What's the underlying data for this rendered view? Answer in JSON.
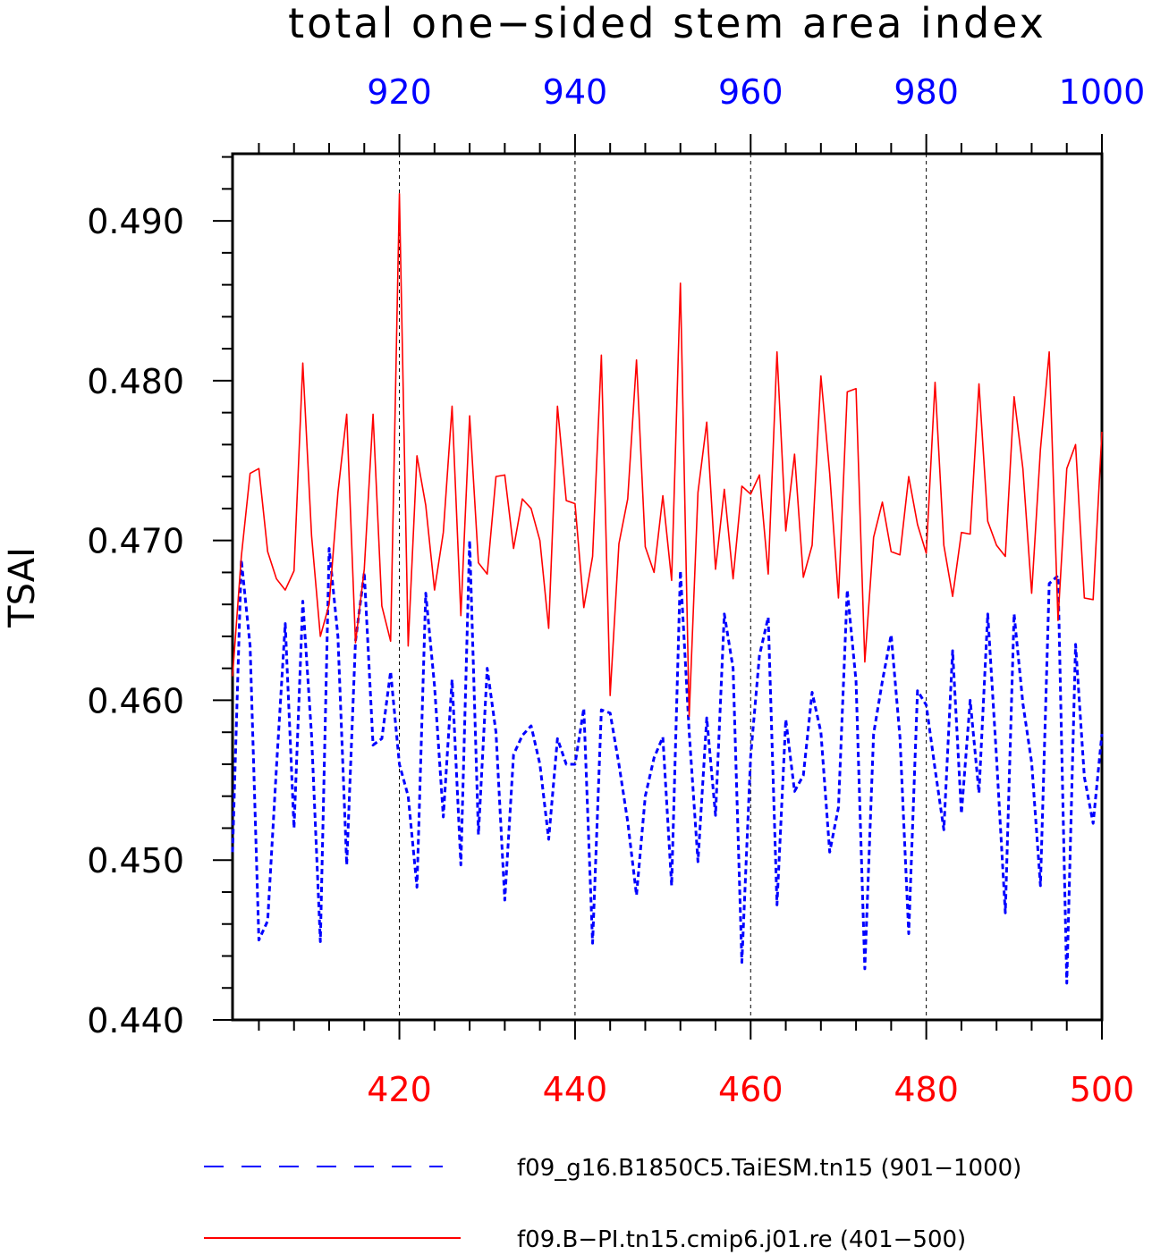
{
  "chart_data": {
    "type": "line",
    "title": "total one−sided stem area index",
    "ylabel": "TSAI",
    "xlabel": "",
    "ylim": [
      0.44,
      0.4942
    ],
    "yticks": [
      "0.440",
      "0.450",
      "0.460",
      "0.470",
      "0.480",
      "0.490"
    ],
    "grid": "vertical dashed lines at major x ticks",
    "legend_position": "bottom",
    "x_bottom": {
      "range": [
        401,
        500
      ],
      "ticks": [
        "420",
        "440",
        "460",
        "480",
        "500"
      ],
      "color": "#ff0000"
    },
    "x_top": {
      "range": [
        901,
        1000
      ],
      "ticks": [
        "920",
        "940",
        "960",
        "980",
        "1000"
      ],
      "color": "#0000ff"
    },
    "series": [
      {
        "name": "f09_g16.B1850C5.TaiESM.tn15 (901−1000)",
        "axis": "top",
        "color": "#0000ff",
        "style": "dashed",
        "x_start": 901,
        "values": [
          0.4505,
          0.4688,
          0.4634,
          0.445,
          0.4462,
          0.4558,
          0.4648,
          0.452,
          0.4662,
          0.4578,
          0.4449,
          0.4695,
          0.464,
          0.4497,
          0.4637,
          0.468,
          0.4572,
          0.4576,
          0.4618,
          0.456,
          0.454,
          0.4483,
          0.4667,
          0.4609,
          0.4527,
          0.4613,
          0.4497,
          0.47,
          0.4516,
          0.462,
          0.458,
          0.4475,
          0.4566,
          0.4578,
          0.4584,
          0.456,
          0.4513,
          0.4576,
          0.456,
          0.456,
          0.4595,
          0.4448,
          0.4594,
          0.4592,
          0.456,
          0.4524,
          0.4478,
          0.454,
          0.4564,
          0.4577,
          0.4484,
          0.4681,
          0.458,
          0.4499,
          0.4589,
          0.4528,
          0.4654,
          0.462,
          0.4436,
          0.4565,
          0.4628,
          0.4652,
          0.4472,
          0.4588,
          0.4543,
          0.4553,
          0.4605,
          0.458,
          0.4505,
          0.4533,
          0.4669,
          0.4612,
          0.4432,
          0.4579,
          0.4612,
          0.4641,
          0.4577,
          0.4454,
          0.4606,
          0.4597,
          0.4557,
          0.4519,
          0.4631,
          0.4529,
          0.46,
          0.4542,
          0.4654,
          0.4564,
          0.4467,
          0.4654,
          0.4598,
          0.4561,
          0.4484,
          0.4673,
          0.4678,
          0.4423,
          0.4635,
          0.4552,
          0.4523,
          0.4579
        ]
      },
      {
        "name": "f09.B−PI.tn15.cmip6.j01.re (401−500)",
        "axis": "bottom",
        "color": "#ff0000",
        "style": "solid",
        "x_start": 401,
        "values": [
          0.4615,
          0.469,
          0.4742,
          0.4745,
          0.4693,
          0.4676,
          0.4669,
          0.4681,
          0.4811,
          0.4703,
          0.464,
          0.466,
          0.473,
          0.4779,
          0.4636,
          0.4682,
          0.4779,
          0.4659,
          0.4637,
          0.4917,
          0.4634,
          0.4753,
          0.4722,
          0.4669,
          0.4705,
          0.4784,
          0.4653,
          0.4778,
          0.4686,
          0.4679,
          0.474,
          0.4741,
          0.4695,
          0.4726,
          0.472,
          0.47,
          0.4645,
          0.4784,
          0.4725,
          0.4723,
          0.4658,
          0.469,
          0.4816,
          0.4603,
          0.4698,
          0.4726,
          0.4813,
          0.4696,
          0.468,
          0.4728,
          0.4675,
          0.4861,
          0.459,
          0.473,
          0.4774,
          0.4682,
          0.4732,
          0.4676,
          0.4734,
          0.4729,
          0.4741,
          0.4679,
          0.4818,
          0.4706,
          0.4754,
          0.4677,
          0.4697,
          0.4803,
          0.4742,
          0.4664,
          0.4793,
          0.4795,
          0.4624,
          0.4702,
          0.4724,
          0.4693,
          0.4691,
          0.474,
          0.471,
          0.4692,
          0.4799,
          0.4697,
          0.4665,
          0.4705,
          0.4704,
          0.4798,
          0.4712,
          0.4697,
          0.469,
          0.479,
          0.4745,
          0.4667,
          0.4757,
          0.4818,
          0.465,
          0.4745,
          0.476,
          0.4664,
          0.4663,
          0.4768
        ]
      }
    ]
  }
}
